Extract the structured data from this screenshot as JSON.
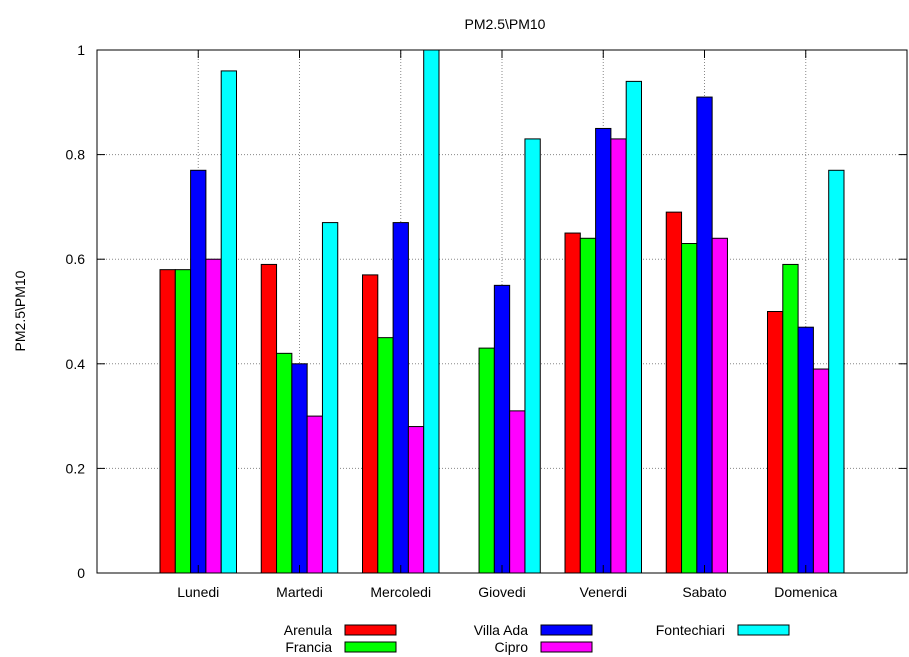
{
  "chart_data": {
    "type": "bar",
    "title": "PM2.5\\PM10",
    "xlabel": "",
    "ylabel": "PM2.5\\PM10",
    "ylim": [
      0,
      1
    ],
    "yticks": [
      "0",
      "0.2",
      "0.4",
      "0.6",
      "0.8",
      "1"
    ],
    "grid": true,
    "legend_position": "bottom",
    "categories": [
      "Lunedi",
      "Martedi",
      "Mercoledi",
      "Giovedi",
      "Venerdi",
      "Sabato",
      "Domenica"
    ],
    "series": [
      {
        "name": "Arenula",
        "color": "#ff0000",
        "values": [
          0.58,
          0.59,
          0.57,
          null,
          0.65,
          0.69,
          0.5
        ]
      },
      {
        "name": "Francia",
        "color": "#00ff00",
        "values": [
          0.58,
          0.42,
          0.45,
          0.43,
          0.64,
          0.63,
          0.59
        ]
      },
      {
        "name": "Villa Ada",
        "color": "#0000ff",
        "values": [
          0.77,
          0.4,
          0.67,
          0.55,
          0.85,
          0.91,
          0.47
        ]
      },
      {
        "name": "Cipro",
        "color": "#ff00ff",
        "values": [
          0.6,
          0.3,
          0.28,
          0.31,
          0.83,
          0.64,
          0.39
        ]
      },
      {
        "name": "Fontechiari",
        "color": "#00ffff",
        "values": [
          0.96,
          0.67,
          1.0,
          0.83,
          0.94,
          null,
          0.77
        ]
      }
    ]
  }
}
